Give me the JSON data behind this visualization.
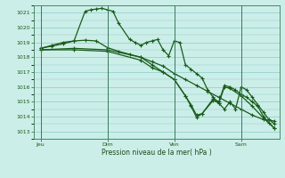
{
  "background_color": "#cceee8",
  "grid_color": "#88cccc",
  "line_color": "#1a5c1a",
  "title": "Pression niveau de la mer( hPa )",
  "ylim": [
    1012.5,
    1021.5
  ],
  "yticks": [
    1013,
    1014,
    1015,
    1016,
    1017,
    1018,
    1019,
    1020,
    1021
  ],
  "day_labels": [
    "Jeu",
    "Dim",
    "Ven",
    "Sam"
  ],
  "day_positions": [
    0,
    84,
    168,
    252
  ],
  "xlim": [
    -8,
    300
  ],
  "line1": [
    [
      0,
      1018.6
    ],
    [
      14,
      1018.75
    ],
    [
      28,
      1018.9
    ],
    [
      42,
      1019.1
    ],
    [
      56,
      1019.15
    ],
    [
      70,
      1019.1
    ],
    [
      84,
      1018.65
    ],
    [
      98,
      1018.4
    ],
    [
      112,
      1018.2
    ],
    [
      126,
      1018.0
    ],
    [
      140,
      1017.7
    ],
    [
      154,
      1017.4
    ],
    [
      168,
      1016.9
    ],
    [
      182,
      1016.5
    ],
    [
      196,
      1016.1
    ],
    [
      210,
      1015.7
    ],
    [
      224,
      1015.3
    ],
    [
      238,
      1014.9
    ],
    [
      252,
      1014.5
    ],
    [
      266,
      1014.1
    ],
    [
      280,
      1013.8
    ],
    [
      294,
      1013.7
    ]
  ],
  "line2": [
    [
      0,
      1018.6
    ],
    [
      14,
      1018.8
    ],
    [
      28,
      1019.0
    ],
    [
      42,
      1019.1
    ],
    [
      56,
      1021.1
    ],
    [
      63,
      1021.2
    ],
    [
      70,
      1021.25
    ],
    [
      77,
      1021.3
    ],
    [
      84,
      1021.2
    ],
    [
      91,
      1021.1
    ],
    [
      98,
      1020.3
    ],
    [
      112,
      1019.2
    ],
    [
      119,
      1019.0
    ],
    [
      126,
      1018.8
    ],
    [
      133,
      1019.0
    ],
    [
      140,
      1019.1
    ],
    [
      147,
      1019.2
    ],
    [
      154,
      1018.5
    ],
    [
      161,
      1018.1
    ],
    [
      168,
      1019.1
    ],
    [
      175,
      1019.0
    ],
    [
      182,
      1017.5
    ],
    [
      189,
      1017.2
    ],
    [
      196,
      1016.9
    ],
    [
      203,
      1016.6
    ],
    [
      210,
      1015.8
    ],
    [
      217,
      1015.3
    ],
    [
      224,
      1014.9
    ],
    [
      231,
      1014.5
    ],
    [
      238,
      1015.0
    ],
    [
      245,
      1014.5
    ],
    [
      252,
      1016.0
    ],
    [
      259,
      1015.8
    ],
    [
      266,
      1015.3
    ],
    [
      273,
      1014.8
    ],
    [
      280,
      1014.3
    ],
    [
      287,
      1013.8
    ],
    [
      294,
      1013.5
    ]
  ],
  "line3": [
    [
      0,
      1018.5
    ],
    [
      42,
      1018.6
    ],
    [
      84,
      1018.5
    ],
    [
      126,
      1018.0
    ],
    [
      140,
      1017.5
    ],
    [
      154,
      1017.0
    ],
    [
      168,
      1016.5
    ],
    [
      182,
      1015.4
    ],
    [
      189,
      1014.8
    ],
    [
      196,
      1014.1
    ],
    [
      203,
      1014.2
    ],
    [
      217,
      1015.2
    ],
    [
      224,
      1015.0
    ],
    [
      231,
      1016.1
    ],
    [
      238,
      1016.0
    ],
    [
      245,
      1015.8
    ],
    [
      252,
      1015.5
    ],
    [
      259,
      1015.3
    ],
    [
      266,
      1015.0
    ],
    [
      273,
      1014.7
    ],
    [
      280,
      1014.0
    ],
    [
      287,
      1013.6
    ],
    [
      294,
      1013.2
    ]
  ],
  "line4": [
    [
      0,
      1018.5
    ],
    [
      42,
      1018.5
    ],
    [
      84,
      1018.4
    ],
    [
      126,
      1017.8
    ],
    [
      140,
      1017.3
    ],
    [
      154,
      1017.0
    ],
    [
      168,
      1016.5
    ],
    [
      182,
      1015.4
    ],
    [
      189,
      1014.7
    ],
    [
      196,
      1013.95
    ],
    [
      203,
      1014.2
    ],
    [
      217,
      1015.1
    ],
    [
      224,
      1014.9
    ],
    [
      231,
      1016.0
    ],
    [
      238,
      1015.9
    ],
    [
      252,
      1015.4
    ],
    [
      266,
      1014.7
    ],
    [
      280,
      1013.9
    ],
    [
      294,
      1013.2
    ]
  ]
}
